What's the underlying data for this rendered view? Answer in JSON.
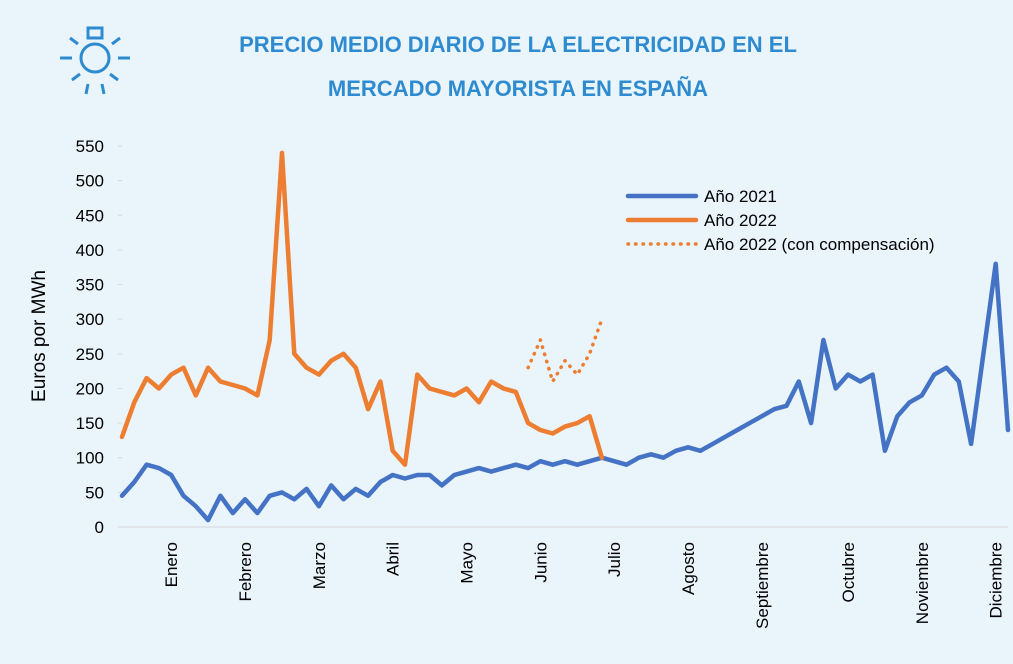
{
  "chart_data": {
    "type": "line",
    "title": [
      "PRECIO MEDIO DIARIO DE LA ELECTRICIDAD EN EL",
      "MERCADO MAYORISTA EN ESPAÑA"
    ],
    "y_label": "Euros por MWh",
    "categories": [
      null,
      null,
      null,
      null,
      "Enero",
      null,
      null,
      null,
      null,
      null,
      "Febrero",
      null,
      null,
      null,
      null,
      null,
      "Marzo",
      null,
      null,
      null,
      null,
      null,
      "Abril",
      null,
      null,
      null,
      null,
      null,
      "Mayo",
      null,
      null,
      null,
      null,
      null,
      "Junio",
      null,
      null,
      null,
      null,
      null,
      "Julio",
      null,
      null,
      null,
      null,
      null,
      "Agosto",
      null,
      null,
      null,
      null,
      null,
      "Septiembre",
      null,
      null,
      null,
      null,
      null,
      null,
      "Octubre",
      null,
      null,
      null,
      null,
      null,
      "Noviembre",
      null,
      null,
      null,
      null,
      null,
      "Diciembre",
      null
    ],
    "series": [
      {
        "name": "Año 2021",
        "color": "#4472c4",
        "style": "solid",
        "values": [
          45,
          65,
          90,
          85,
          75,
          45,
          30,
          10,
          45,
          20,
          40,
          20,
          45,
          50,
          40,
          55,
          30,
          60,
          40,
          55,
          45,
          65,
          75,
          70,
          75,
          75,
          60,
          75,
          80,
          85,
          80,
          85,
          90,
          85,
          95,
          90,
          95,
          90,
          95,
          100,
          95,
          90,
          100,
          105,
          100,
          110,
          115,
          110,
          120,
          130,
          140,
          150,
          160,
          170,
          175,
          210,
          150,
          270,
          200,
          220,
          210,
          220,
          110,
          160,
          180,
          190,
          220,
          230,
          210,
          120,
          250,
          380,
          140
        ]
      },
      {
        "name": "Año 2022",
        "color": "#ed7d31",
        "style": "solid",
        "values": [
          130,
          180,
          215,
          200,
          220,
          230,
          190,
          230,
          210,
          205,
          200,
          190,
          270,
          540,
          250,
          230,
          220,
          240,
          250,
          230,
          170,
          210,
          110,
          90,
          220,
          200,
          195,
          190,
          200,
          180,
          210,
          200,
          195,
          150,
          140,
          135,
          145,
          150,
          160,
          100,
          null,
          null,
          null,
          null,
          null,
          null,
          null,
          null,
          null,
          null,
          null,
          null,
          null,
          null,
          null,
          null,
          null,
          null,
          null,
          null,
          null,
          null,
          null,
          null,
          null,
          null,
          null,
          null,
          null,
          null,
          null,
          null,
          null
        ]
      },
      {
        "name": "Año 2022 (con compensación)",
        "color": "#ed7d31",
        "style": "dotted",
        "values": [
          null,
          null,
          null,
          null,
          null,
          null,
          null,
          null,
          null,
          null,
          null,
          null,
          null,
          null,
          null,
          null,
          null,
          null,
          null,
          null,
          null,
          null,
          null,
          null,
          null,
          null,
          null,
          null,
          null,
          null,
          null,
          null,
          null,
          230,
          270,
          210,
          240,
          220,
          250,
          300,
          null,
          null,
          null,
          null,
          null,
          null,
          null,
          null,
          null,
          null,
          null,
          null,
          null,
          null,
          null,
          null,
          null,
          null,
          null,
          null,
          null,
          null,
          null,
          null,
          null,
          null,
          null,
          null,
          null,
          null,
          null,
          null,
          null
        ]
      }
    ],
    "ylim": [
      0,
      550
    ],
    "yticks": [
      0,
      50,
      100,
      150,
      200,
      250,
      300,
      350,
      400,
      450,
      500,
      550
    ],
    "legend": "upper right"
  }
}
